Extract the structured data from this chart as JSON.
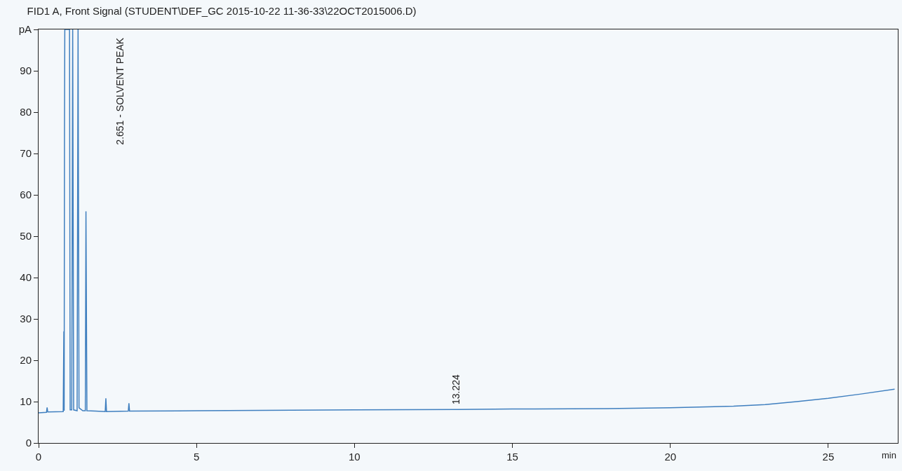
{
  "chart_data": {
    "type": "line",
    "title": "FID1 A, Front Signal (STUDENT\\DEF_GC 2015-10-22 11-36-33\\22OCT2015006.D)",
    "xlabel": "min",
    "series": [
      {
        "color": "#3f7fbf",
        "x": [
          0,
          0.25,
          0.27,
          0.29,
          0.78,
          0.8,
          0.81,
          0.82,
          0.83,
          0.84,
          0.9,
          0.95,
          0.98,
          1.0,
          1.05,
          1.08,
          1.11,
          1.22,
          1.25,
          1.28,
          1.4,
          1.48,
          1.5,
          1.53,
          1.8,
          2.11,
          2.13,
          2.15,
          2.84,
          2.86,
          2.88,
          5,
          10,
          13.2,
          13.224,
          13.25,
          15,
          18,
          20,
          22,
          23,
          24,
          25,
          26,
          27.1
        ],
        "values": [
          7.3,
          7.4,
          8.6,
          7.5,
          7.6,
          27,
          7.8,
          75,
          100,
          100,
          100,
          100,
          100,
          8,
          8,
          100,
          8,
          7.8,
          100,
          8.5,
          7.8,
          7.8,
          56,
          7.8,
          7.7,
          7.6,
          10.8,
          7.6,
          7.7,
          9.6,
          7.7,
          7.8,
          8,
          8.1,
          8.1,
          8.1,
          8.2,
          8.3,
          8.5,
          8.9,
          9.3,
          10,
          10.8,
          11.8,
          13
        ]
      }
    ],
    "annotations": [
      "2.651 - SOLVENT PEAK",
      {
        "text": "13.224",
        "x": 13.224,
        "y": 9
      }
    ],
    "xlim": [
      0,
      27.2
    ],
    "xticks": [
      0,
      5,
      10,
      15,
      20,
      25
    ],
    "ylim": [
      0,
      100
    ],
    "yticks": [
      0,
      10,
      20,
      30,
      40,
      50,
      60,
      70,
      80,
      90,
      {
        "value": 100,
        "label": "pA"
      }
    ],
    "grid": false,
    "marker": "none",
    "line_style": "solid"
  }
}
